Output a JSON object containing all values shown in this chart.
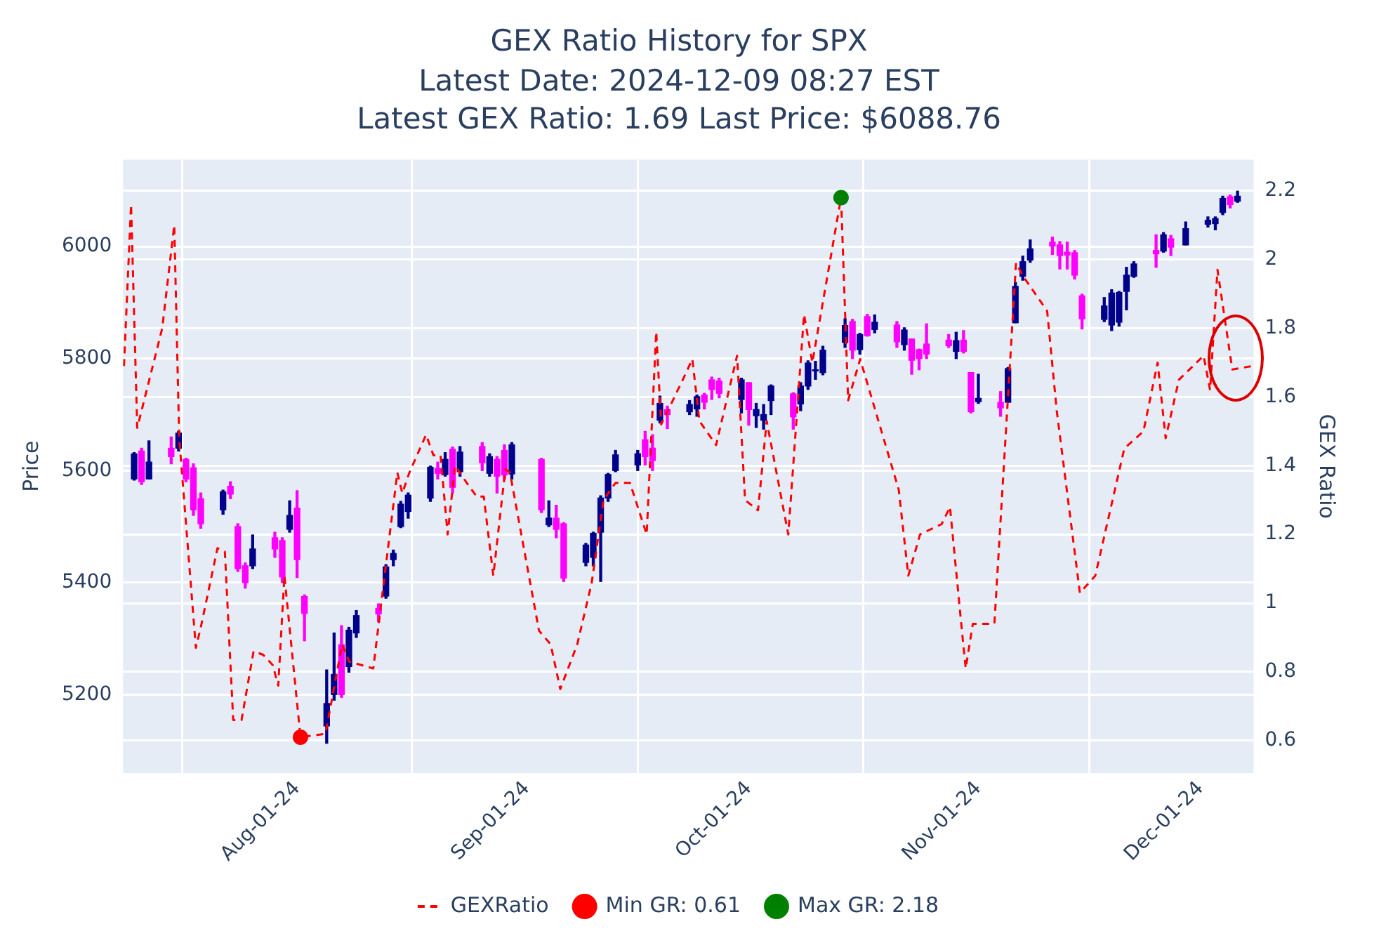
{
  "chart_data": {
    "type": "candlestick",
    "title": "GEX Ratio History for SPX",
    "subtitle": "Latest Date: 2024-12-09 08:27 EST\nLatest GEX Ratio: 1.69 Last Price: $6088.76",
    "ylabel": "Price",
    "y2label": "GEX Ratio",
    "x": [
      "2024-07-10",
      "2024-07-11",
      "2024-07-12",
      "2024-07-15",
      "2024-07-16",
      "2024-07-17",
      "2024-07-18",
      "2024-07-19",
      "2024-07-22",
      "2024-07-23",
      "2024-07-24",
      "2024-07-25",
      "2024-07-26",
      "2024-07-29",
      "2024-07-30",
      "2024-07-31",
      "2024-08-01",
      "2024-08-02",
      "2024-08-05",
      "2024-08-06",
      "2024-08-07",
      "2024-08-08",
      "2024-08-09",
      "2024-08-12",
      "2024-08-13",
      "2024-08-14",
      "2024-08-15",
      "2024-08-16",
      "2024-08-19",
      "2024-08-20",
      "2024-08-21",
      "2024-08-22",
      "2024-08-23",
      "2024-08-26",
      "2024-08-27",
      "2024-08-28",
      "2024-08-29",
      "2024-08-30",
      "2024-09-03",
      "2024-09-04",
      "2024-09-05",
      "2024-09-06",
      "2024-09-09",
      "2024-09-10",
      "2024-09-11",
      "2024-09-12",
      "2024-09-13",
      "2024-09-16",
      "2024-09-17",
      "2024-09-18",
      "2024-09-19",
      "2024-09-20",
      "2024-09-23",
      "2024-09-24",
      "2024-09-25",
      "2024-09-26",
      "2024-09-27",
      "2024-09-30",
      "2024-10-01",
      "2024-10-02",
      "2024-10-03",
      "2024-10-04",
      "2024-10-07",
      "2024-10-08",
      "2024-10-09",
      "2024-10-10",
      "2024-10-11",
      "2024-10-14",
      "2024-10-15",
      "2024-10-16",
      "2024-10-17",
      "2024-10-18",
      "2024-10-21",
      "2024-10-22",
      "2024-10-23",
      "2024-10-24",
      "2024-10-25",
      "2024-10-28",
      "2024-10-29",
      "2024-10-30",
      "2024-10-31",
      "2024-11-01",
      "2024-11-04",
      "2024-11-05",
      "2024-11-06",
      "2024-11-07",
      "2024-11-08",
      "2024-11-11",
      "2024-11-12",
      "2024-11-13",
      "2024-11-14",
      "2024-11-15",
      "2024-11-18",
      "2024-11-19",
      "2024-11-20",
      "2024-11-21",
      "2024-11-22",
      "2024-11-25",
      "2024-11-26",
      "2024-11-27",
      "2024-11-29",
      "2024-12-02",
      "2024-12-03",
      "2024-12-04",
      "2024-12-05",
      "2024-12-06"
    ],
    "ohlc": [
      [
        5585,
        5632,
        5583,
        5630
      ],
      [
        5635,
        5640,
        5575,
        5580
      ],
      [
        5585,
        5653,
        5585,
        5615
      ],
      [
        5640,
        5660,
        5612,
        5625
      ],
      [
        5640,
        5670,
        5635,
        5667
      ],
      [
        5620,
        5622,
        5580,
        5585
      ],
      [
        5605,
        5612,
        5520,
        5530
      ],
      [
        5550,
        5560,
        5497,
        5505
      ],
      [
        5530,
        5565,
        5522,
        5562
      ],
      [
        5572,
        5580,
        5550,
        5558
      ],
      [
        5500,
        5505,
        5420,
        5425
      ],
      [
        5430,
        5435,
        5390,
        5400
      ],
      [
        5430,
        5485,
        5425,
        5460
      ],
      [
        5480,
        5490,
        5445,
        5460
      ],
      [
        5475,
        5480,
        5400,
        5410
      ],
      [
        5495,
        5546,
        5490,
        5520
      ],
      [
        5533,
        5564,
        5409,
        5441
      ],
      [
        5375,
        5378,
        5296,
        5345
      ],
      [
        5144,
        5244,
        5113,
        5184
      ],
      [
        5200,
        5310,
        5190,
        5236
      ],
      [
        5289,
        5323,
        5195,
        5200
      ],
      [
        5250,
        5320,
        5240,
        5315
      ],
      [
        5310,
        5350,
        5302,
        5341
      ],
      [
        5354,
        5362,
        5330,
        5344
      ],
      [
        5376,
        5432,
        5372,
        5428
      ],
      [
        5441,
        5458,
        5430,
        5452
      ],
      [
        5500,
        5545,
        5498,
        5540
      ],
      [
        5527,
        5560,
        5515,
        5556
      ],
      [
        5551,
        5608,
        5545,
        5606
      ],
      [
        5604,
        5615,
        5585,
        5595
      ],
      [
        5593,
        5632,
        5590,
        5620
      ],
      [
        5638,
        5642,
        5560,
        5570
      ],
      [
        5598,
        5643,
        5590,
        5633
      ],
      [
        5643,
        5650,
        5600,
        5614
      ],
      [
        5595,
        5630,
        5590,
        5625
      ],
      [
        5620,
        5625,
        5560,
        5590
      ],
      [
        5636,
        5646,
        5585,
        5592
      ],
      [
        5594,
        5650,
        5585,
        5646
      ],
      [
        5620,
        5622,
        5525,
        5530
      ],
      [
        5503,
        5546,
        5500,
        5515
      ],
      [
        5515,
        5538,
        5480,
        5495
      ],
      [
        5505,
        5507,
        5402,
        5408
      ],
      [
        5436,
        5470,
        5430,
        5467
      ],
      [
        5445,
        5490,
        5430,
        5488
      ],
      [
        5490,
        5555,
        5402,
        5551
      ],
      [
        5551,
        5595,
        5545,
        5593
      ],
      [
        5600,
        5636,
        5598,
        5628
      ],
      [
        5610,
        5636,
        5600,
        5630
      ],
      [
        5655,
        5670,
        5610,
        5625
      ],
      [
        5640,
        5664,
        5600,
        5618
      ],
      [
        5690,
        5733,
        5685,
        5720
      ],
      [
        5709,
        5715,
        5675,
        5700
      ],
      [
        5705,
        5725,
        5700,
        5718
      ],
      [
        5710,
        5735,
        5697,
        5732
      ],
      [
        5735,
        5738,
        5710,
        5722
      ],
      [
        5762,
        5767,
        5727,
        5745
      ],
      [
        5760,
        5765,
        5730,
        5738
      ],
      [
        5727,
        5765,
        5703,
        5762
      ],
      [
        5757,
        5757,
        5681,
        5709
      ],
      [
        5698,
        5720,
        5677,
        5709
      ],
      [
        5690,
        5718,
        5674,
        5700
      ],
      [
        5725,
        5753,
        5700,
        5751
      ],
      [
        5737,
        5739,
        5674,
        5696
      ],
      [
        5719,
        5757,
        5707,
        5751
      ],
      [
        5751,
        5796,
        5745,
        5792
      ],
      [
        5778,
        5795,
        5763,
        5780
      ],
      [
        5775,
        5822,
        5771,
        5815
      ],
      [
        5829,
        5871,
        5820,
        5859
      ],
      [
        5866,
        5870,
        5800,
        5815
      ],
      [
        5816,
        5845,
        5808,
        5843
      ],
      [
        5875,
        5879,
        5840,
        5841
      ],
      [
        5852,
        5878,
        5846,
        5865
      ],
      [
        5860,
        5866,
        5820,
        5830
      ],
      [
        5825,
        5855,
        5815,
        5851
      ],
      [
        5835,
        5835,
        5772,
        5797
      ],
      [
        5816,
        5817,
        5780,
        5800
      ],
      [
        5826,
        5862,
        5800,
        5808
      ],
      [
        5833,
        5843,
        5820,
        5823
      ],
      [
        5813,
        5847,
        5800,
        5832
      ],
      [
        5833,
        5850,
        5810,
        5813
      ],
      [
        5775,
        5775,
        5703,
        5705
      ],
      [
        5723,
        5772,
        5720,
        5729
      ],
      [
        5722,
        5741,
        5697,
        5712
      ],
      [
        5722,
        5784,
        5722,
        5782
      ],
      [
        5864,
        5936,
        5864,
        5929
      ],
      [
        5947,
        5983,
        5940,
        5973
      ],
      [
        5976,
        6012,
        5972,
        5996
      ],
      [
        6008,
        6017,
        5986,
        6001
      ],
      [
        6003,
        6009,
        5960,
        5984
      ],
      [
        5990,
        6008,
        5960,
        5985
      ],
      [
        5989,
        5993,
        5942,
        5949
      ],
      [
        5912,
        5915,
        5853,
        5871
      ],
      [
        5870,
        5909,
        5866,
        5894
      ],
      [
        5860,
        5923,
        5850,
        5917
      ],
      [
        5865,
        5920,
        5858,
        5918
      ],
      [
        5920,
        5963,
        5887,
        5949
      ],
      [
        5947,
        5973,
        5945,
        5969
      ],
      [
        5993,
        6021,
        5963,
        5987
      ],
      [
        5992,
        6025,
        5990,
        6021
      ],
      [
        6014,
        6020,
        5984,
        5999
      ],
      [
        6003,
        6044,
        6003,
        6032
      ],
      [
        6040,
        6053,
        6035,
        6047
      ],
      [
        6041,
        6053,
        6030,
        6050
      ],
      [
        6061,
        6090,
        6057,
        6086
      ],
      [
        6089,
        6092,
        6069,
        6075
      ],
      [
        6081,
        6099,
        6079,
        6090
      ]
    ],
    "colors": [
      "#00008b",
      "#ff00ff",
      "#00008b",
      "#ff00ff",
      "#00008b",
      "#ff00ff",
      "#ff00ff",
      "#ff00ff",
      "#00008b",
      "#ff00ff",
      "#ff00ff",
      "#ff00ff",
      "#00008b",
      "#ff00ff",
      "#ff00ff",
      "#00008b",
      "#ff00ff",
      "#ff00ff",
      "#00008b",
      "#00008b",
      "#ff00ff",
      "#00008b",
      "#00008b",
      "#ff00ff",
      "#00008b",
      "#00008b",
      "#00008b",
      "#00008b",
      "#00008b",
      "#ff00ff",
      "#00008b",
      "#ff00ff",
      "#00008b",
      "#ff00ff",
      "#00008b",
      "#ff00ff",
      "#ff00ff",
      "#00008b",
      "#ff00ff",
      "#00008b",
      "#ff00ff",
      "#ff00ff",
      "#00008b",
      "#00008b",
      "#00008b",
      "#00008b",
      "#00008b",
      "#00008b",
      "#ff00ff",
      "#ff00ff",
      "#00008b",
      "#ff00ff",
      "#00008b",
      "#00008b",
      "#ff00ff",
      "#ff00ff",
      "#ff00ff",
      "#00008b",
      "#ff00ff",
      "#00008b",
      "#00008b",
      "#00008b",
      "#ff00ff",
      "#00008b",
      "#00008b",
      "#00008b",
      "#00008b",
      "#00008b",
      "#ff00ff",
      "#00008b",
      "#ff00ff",
      "#00008b",
      "#ff00ff",
      "#00008b",
      "#ff00ff",
      "#ff00ff",
      "#ff00ff",
      "#ff00ff",
      "#00008b",
      "#ff00ff",
      "#ff00ff",
      "#00008b",
      "#ff00ff",
      "#00008b",
      "#00008b",
      "#00008b",
      "#00008b",
      "#ff00ff",
      "#ff00ff",
      "#ff00ff",
      "#ff00ff",
      "#ff00ff",
      "#00008b",
      "#00008b",
      "#00008b",
      "#00008b",
      "#00008b",
      "#ff00ff",
      "#00008b",
      "#ff00ff",
      "#00008b",
      "#00008b",
      "#00008b",
      "#00008b",
      "#ff00ff",
      "#00008b"
    ],
    "series": [
      {
        "name": "GEXRatio",
        "type": "line",
        "axis": "y2",
        "color": "#ff0000",
        "line_style": "dashed",
        "marker": "none",
        "x": [
          "2024-07-08T15:00",
          "2024-07-09T14:00",
          "2024-07-10T10:00",
          "2024-07-13T19:00",
          "2024-07-15T10:00",
          "2024-07-16T02:00",
          "2024-07-18T08:00",
          "2024-07-19T00:00",
          "2024-07-21T06:00",
          "2024-07-22T06:00",
          "2024-07-23T09:00",
          "2024-07-24T12:00",
          "2024-07-26T03:00",
          "2024-07-27T10:00",
          "2024-07-28T17:00",
          "2024-07-29T11:00",
          "2024-07-30T07:00",
          "2024-08-01T11:00",
          "2024-08-04T20:00",
          "2024-08-07T02:00",
          "2024-08-08T01:00",
          "2024-08-11T07:00",
          "2024-08-12T06:00",
          "2024-08-14T13:00",
          "2024-08-15T05:00",
          "2024-08-16T04:00",
          "2024-08-18T10:00",
          "2024-08-19T10:00",
          "2024-08-20T09:00",
          "2024-08-21T08:00",
          "2024-08-22T08:00",
          "2024-08-23T22:00",
          "2024-08-25T06:00",
          "2024-08-26T05:00",
          "2024-08-27T12:00",
          "2024-08-29T03:00",
          "2024-08-29T18:00",
          "2024-09-02T16:00",
          "2024-09-04T06:00",
          "2024-09-05T13:00",
          "2024-09-07T20:00",
          "2024-09-09T19:00",
          "2024-09-11T09:00",
          "2024-09-13T00:00",
          "2024-09-14T23:00",
          "2024-09-17T05:00",
          "2024-09-18T12:00",
          "2024-09-19T04:00",
          "2024-09-22T02:00",
          "2024-09-23T09:00",
          "2024-09-24T08:00",
          "2024-09-26T14:00",
          "2024-09-29T10:00",
          "2024-09-30T12:00",
          "2024-10-02T06:00",
          "2024-10-03T10:00",
          "2024-10-06T08:00",
          "2024-10-08T11:00",
          "2024-10-09T14:00",
          "2024-10-13T11:00",
          "2024-10-14T10:00",
          "2024-10-16T01:00",
          "2024-10-21T06:00",
          "2024-10-22T13:00",
          "2024-10-24T03:00",
          "2024-10-27T01:00",
          "2024-10-28T04:00",
          "2024-10-29T23:00",
          "2024-10-30T07:00",
          "2024-10-31T06:00",
          "2024-11-03T04:00",
          "2024-11-06T02:00",
          "2024-11-07T02:00",
          "2024-11-10T07:00",
          "2024-11-11T14:00",
          "2024-11-14T17:00",
          "2024-11-16T19:00",
          "2024-11-20T17:00",
          "2024-11-23T07:00",
          "2024-11-25T05:00",
          "2024-11-26T07:00",
          "2024-11-28T02:00",
          "2024-12-01T10:00",
          "2024-12-02T07:00",
          "2024-12-03T07:00",
          "2024-12-05T07:00",
          "2024-12-08T00:00"
        ],
        "values": [
          1.69,
          2.16,
          1.51,
          1.8,
          2.1,
          1.48,
          0.87,
          0.93,
          1.16,
          1.15,
          0.66,
          0.66,
          0.86,
          0.85,
          0.82,
          0.76,
          1.08,
          0.61,
          0.62,
          0.88,
          0.83,
          0.81,
          0.98,
          1.38,
          1.32,
          1.38,
          1.49,
          1.43,
          1.43,
          1.2,
          1.4,
          1.35,
          1.31,
          1.31,
          1.08,
          1.39,
          1.38,
          0.92,
          0.88,
          0.75,
          0.88,
          1.06,
          1.3,
          1.35,
          1.35,
          1.2,
          1.79,
          1.52,
          1.65,
          1.71,
          1.53,
          1.46,
          1.72,
          1.3,
          1.27,
          1.53,
          1.2,
          1.84,
          1.7,
          2.18,
          1.59,
          1.71,
          1.33,
          1.08,
          1.2,
          1.23,
          1.28,
          0.88,
          0.81,
          0.94,
          0.94,
          1.99,
          1.95,
          1.85,
          1.56,
          1.03,
          1.08,
          1.45,
          1.5,
          1.7,
          1.48,
          1.65,
          1.72,
          1.62,
          1.97,
          1.68,
          1.69
        ]
      },
      {
        "name": "Min GR: 0.61",
        "type": "scatter",
        "axis": "y2",
        "color": "#ff0000",
        "marker": "circle",
        "x": [
          "2024-08-01T11:00"
        ],
        "values": [
          0.61
        ]
      },
      {
        "name": "Max GR: 2.18",
        "type": "scatter",
        "axis": "y2",
        "color": "#008000",
        "marker": "circle",
        "x": [
          "2024-10-13T11:00"
        ],
        "values": [
          2.18
        ]
      }
    ],
    "xlim": [
      "2024-07-08T12:00",
      "2024-12-08T04:00"
    ],
    "xticks": [
      {
        "value": "2024-08-01",
        "label": "Aug-01-24"
      },
      {
        "value": "2024-09-01",
        "label": "Sep-01-24"
      },
      {
        "value": "2024-10-01",
        "label": "Oct-01-24"
      },
      {
        "value": "2024-11-01",
        "label": "Nov-01-24"
      },
      {
        "value": "2024-12-01",
        "label": "Dec-01-24"
      }
    ],
    "ylim": [
      5060,
      6155
    ],
    "yticks": [
      5200,
      5400,
      5600,
      5800,
      6000
    ],
    "y2lim": [
      0.506,
      2.29
    ],
    "y2ticks": [
      0.6,
      0.8,
      1,
      1.2,
      1.4,
      1.6,
      1.8,
      2,
      2.2
    ],
    "grid": true,
    "legend": "bottom"
  }
}
